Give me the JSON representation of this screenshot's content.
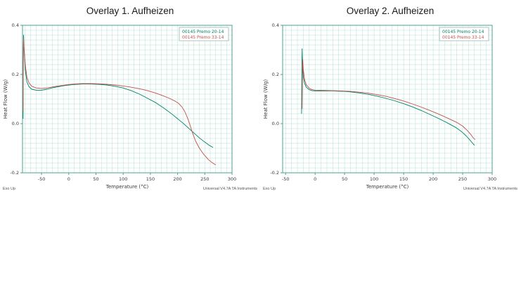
{
  "page": {
    "background": "#ffffff"
  },
  "chart_data": [
    {
      "type": "line",
      "title": "Overlay 1. Aufheizen",
      "xlabel": "Temperature (°C)",
      "ylabel": "Heat Flow (W/g)",
      "exo_label": "Exo Up",
      "instrument_label": "Universal V4.7A TA Instruments",
      "xlim": [
        -85,
        300
      ],
      "ylim": [
        -0.2,
        0.4
      ],
      "x_ticks": [
        {
          "v": -50,
          "label": "-50"
        },
        {
          "v": 0,
          "label": "0"
        },
        {
          "v": 50,
          "label": "50"
        },
        {
          "v": 100,
          "label": "100"
        },
        {
          "v": 150,
          "label": "150"
        },
        {
          "v": 200,
          "label": "200"
        },
        {
          "v": 250,
          "label": "250"
        },
        {
          "v": 300,
          "label": "300"
        }
      ],
      "y_ticks": [
        {
          "v": -0.2,
          "label": "-0.2"
        },
        {
          "v": 0.0,
          "label": "0.0"
        },
        {
          "v": 0.2,
          "label": "0.2"
        },
        {
          "v": 0.4,
          "label": "0.4"
        }
      ],
      "grid_step_x": 10,
      "grid_step_y": 0.02,
      "grid_color": "#b5e0d5",
      "frame_color": "#4aa391",
      "text_color": "#3a3a3a",
      "legend_border": "#9bb8b0",
      "legend": [
        {
          "label": "00145 Premo 20-14",
          "color": "#008066"
        },
        {
          "label": "00145 Premo 33-14",
          "color": "#c0504d"
        }
      ],
      "series": [
        {
          "name": "00145 Premo 20-14",
          "color": "#008066",
          "points": [
            [
              -84,
              0.02
            ],
            [
              -83.5,
              0.3
            ],
            [
              -83,
              0.36
            ],
            [
              -82,
              0.3
            ],
            [
              -80,
              0.22
            ],
            [
              -77,
              0.17
            ],
            [
              -73,
              0.15
            ],
            [
              -68,
              0.14
            ],
            [
              -60,
              0.136
            ],
            [
              -50,
              0.136
            ],
            [
              -40,
              0.14
            ],
            [
              -30,
              0.146
            ],
            [
              -20,
              0.15
            ],
            [
              -10,
              0.154
            ],
            [
              0,
              0.157
            ],
            [
              10,
              0.159
            ],
            [
              25,
              0.161
            ],
            [
              40,
              0.161
            ],
            [
              55,
              0.16
            ],
            [
              70,
              0.157
            ],
            [
              85,
              0.152
            ],
            [
              100,
              0.145
            ],
            [
              115,
              0.134
            ],
            [
              130,
              0.12
            ],
            [
              145,
              0.103
            ],
            [
              160,
              0.085
            ],
            [
              175,
              0.063
            ],
            [
              190,
              0.038
            ],
            [
              200,
              0.02
            ],
            [
              210,
              0.002
            ],
            [
              220,
              -0.018
            ],
            [
              230,
              -0.038
            ],
            [
              240,
              -0.058
            ],
            [
              250,
              -0.075
            ],
            [
              258,
              -0.088
            ],
            [
              265,
              -0.097
            ]
          ]
        },
        {
          "name": "00145 Premo 33-14",
          "color": "#c0504d",
          "points": [
            [
              -84,
              0.05
            ],
            [
              -83.5,
              0.28
            ],
            [
              -83,
              0.345
            ],
            [
              -82,
              0.3
            ],
            [
              -80,
              0.24
            ],
            [
              -77,
              0.19
            ],
            [
              -73,
              0.165
            ],
            [
              -68,
              0.152
            ],
            [
              -60,
              0.145
            ],
            [
              -50,
              0.143
            ],
            [
              -40,
              0.145
            ],
            [
              -30,
              0.149
            ],
            [
              -20,
              0.153
            ],
            [
              -10,
              0.156
            ],
            [
              0,
              0.159
            ],
            [
              10,
              0.161
            ],
            [
              25,
              0.163
            ],
            [
              40,
              0.163
            ],
            [
              55,
              0.162
            ],
            [
              70,
              0.16
            ],
            [
              85,
              0.157
            ],
            [
              100,
              0.153
            ],
            [
              115,
              0.148
            ],
            [
              130,
              0.142
            ],
            [
              145,
              0.134
            ],
            [
              160,
              0.124
            ],
            [
              175,
              0.112
            ],
            [
              185,
              0.103
            ],
            [
              195,
              0.092
            ],
            [
              202,
              0.082
            ],
            [
              208,
              0.068
            ],
            [
              213,
              0.05
            ],
            [
              218,
              0.025
            ],
            [
              222,
              0.0
            ],
            [
              227,
              -0.035
            ],
            [
              233,
              -0.07
            ],
            [
              240,
              -0.1
            ],
            [
              248,
              -0.125
            ],
            [
              256,
              -0.145
            ],
            [
              263,
              -0.158
            ],
            [
              270,
              -0.168
            ]
          ]
        }
      ]
    },
    {
      "type": "line",
      "title": "Overlay 2. Aufheizen",
      "xlabel": "Temperature (°C)",
      "ylabel": "Heat Flow (W/g)",
      "exo_label": "Exo Up",
      "instrument_label": "Universal V4.7A TA Instruments",
      "xlim": [
        -55,
        300
      ],
      "ylim": [
        -0.2,
        0.4
      ],
      "x_ticks": [
        {
          "v": -50,
          "label": "-50"
        },
        {
          "v": 0,
          "label": "0"
        },
        {
          "v": 50,
          "label": "50"
        },
        {
          "v": 100,
          "label": "100"
        },
        {
          "v": 150,
          "label": "150"
        },
        {
          "v": 200,
          "label": "200"
        },
        {
          "v": 250,
          "label": "250"
        },
        {
          "v": 300,
          "label": "300"
        }
      ],
      "y_ticks": [
        {
          "v": -0.2,
          "label": "-0.2"
        },
        {
          "v": 0.0,
          "label": "0.0"
        },
        {
          "v": 0.2,
          "label": "0.2"
        },
        {
          "v": 0.4,
          "label": "0.4"
        }
      ],
      "grid_step_x": 10,
      "grid_step_y": 0.02,
      "grid_color": "#b5e0d5",
      "frame_color": "#4aa391",
      "text_color": "#3a3a3a",
      "legend_border": "#9bb8b0",
      "legend": [
        {
          "label": "00145 Premo 20-14",
          "color": "#008066"
        },
        {
          "label": "00145 Premo 33-14",
          "color": "#c0504d"
        }
      ],
      "series": [
        {
          "name": "00145 Premo 20-14",
          "color": "#008066",
          "points": [
            [
              -23,
              0.04
            ],
            [
              -22.5,
              0.2
            ],
            [
              -22,
              0.305
            ],
            [
              -21.5,
              0.26
            ],
            [
              -20,
              0.19
            ],
            [
              -18,
              0.165
            ],
            [
              -15,
              0.148
            ],
            [
              -10,
              0.138
            ],
            [
              -5,
              0.134
            ],
            [
              0,
              0.133
            ],
            [
              10,
              0.133
            ],
            [
              20,
              0.133
            ],
            [
              30,
              0.133
            ],
            [
              40,
              0.132
            ],
            [
              50,
              0.131
            ],
            [
              60,
              0.129
            ],
            [
              75,
              0.125
            ],
            [
              90,
              0.119
            ],
            [
              105,
              0.112
            ],
            [
              120,
              0.103
            ],
            [
              135,
              0.093
            ],
            [
              150,
              0.081
            ],
            [
              165,
              0.068
            ],
            [
              180,
              0.053
            ],
            [
              195,
              0.037
            ],
            [
              210,
              0.02
            ],
            [
              225,
              0.002
            ],
            [
              238,
              -0.015
            ],
            [
              248,
              -0.032
            ],
            [
              256,
              -0.05
            ],
            [
              262,
              -0.066
            ],
            [
              267,
              -0.08
            ],
            [
              270,
              -0.088
            ]
          ]
        },
        {
          "name": "00145 Premo 33-14",
          "color": "#c0504d",
          "points": [
            [
              -22,
              0.06
            ],
            [
              -21.5,
              0.18
            ],
            [
              -21,
              0.26
            ],
            [
              -20,
              0.22
            ],
            [
              -18,
              0.18
            ],
            [
              -15,
              0.158
            ],
            [
              -10,
              0.144
            ],
            [
              -5,
              0.138
            ],
            [
              0,
              0.136
            ],
            [
              15,
              0.135
            ],
            [
              30,
              0.134
            ],
            [
              45,
              0.133
            ],
            [
              60,
              0.131
            ],
            [
              75,
              0.128
            ],
            [
              90,
              0.124
            ],
            [
              105,
              0.118
            ],
            [
              120,
              0.111
            ],
            [
              135,
              0.102
            ],
            [
              150,
              0.092
            ],
            [
              165,
              0.08
            ],
            [
              180,
              0.067
            ],
            [
              195,
              0.053
            ],
            [
              210,
              0.038
            ],
            [
              225,
              0.022
            ],
            [
              240,
              0.005
            ],
            [
              250,
              -0.01
            ],
            [
              258,
              -0.028
            ],
            [
              264,
              -0.045
            ],
            [
              268,
              -0.058
            ],
            [
              271,
              -0.065
            ]
          ]
        }
      ]
    }
  ]
}
